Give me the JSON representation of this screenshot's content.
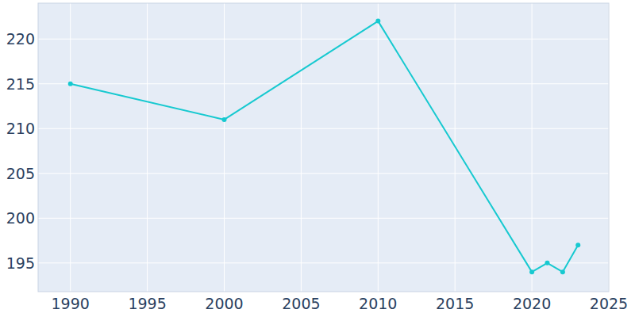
{
  "chart_data": {
    "type": "line",
    "x": [
      1990,
      2000,
      2010,
      2020,
      2021,
      2022,
      2023
    ],
    "values": [
      215,
      211,
      222,
      194,
      195,
      194,
      197
    ],
    "color": "#17c9d0",
    "marker": "circle",
    "xlim": [
      1987.9,
      2025
    ],
    "xticks": [
      1990,
      1995,
      2000,
      2005,
      2010,
      2015,
      2020,
      2025
    ],
    "ylim": [
      191.8,
      224
    ],
    "yticks": [
      195,
      200,
      205,
      210,
      215,
      220
    ],
    "grid": true
  }
}
